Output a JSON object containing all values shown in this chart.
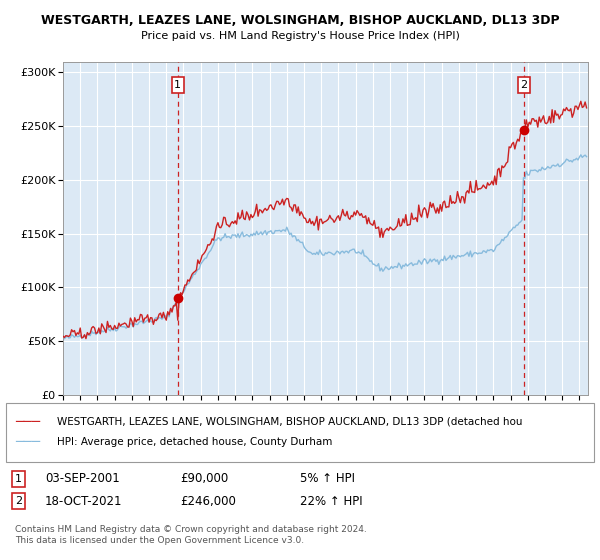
{
  "title": "WESTGARTH, LEAZES LANE, WOLSINGHAM, BISHOP AUCKLAND, DL13 3DP",
  "subtitle": "Price paid vs. HM Land Registry's House Price Index (HPI)",
  "background_color": "#dce9f5",
  "line_color_hpi": "#88bbdd",
  "line_color_prop": "#cc2222",
  "marker_color": "#cc0000",
  "vline_color": "#cc2222",
  "sale1_date": 2001.67,
  "sale1_price": 90000,
  "sale2_date": 2021.79,
  "sale2_price": 246000,
  "legend_label_prop": "WESTGARTH, LEAZES LANE, WOLSINGHAM, BISHOP AUCKLAND, DL13 3DP (detached hou",
  "legend_label_hpi": "HPI: Average price, detached house, County Durham",
  "footer": "Contains HM Land Registry data © Crown copyright and database right 2024.\nThis data is licensed under the Open Government Licence v3.0.",
  "ylim": [
    0,
    310000
  ],
  "yticks": [
    0,
    50000,
    100000,
    150000,
    200000,
    250000,
    300000
  ],
  "ytick_labels": [
    "£0",
    "£50K",
    "£100K",
    "£150K",
    "£200K",
    "£250K",
    "£300K"
  ],
  "xstart": 1995,
  "xend": 2025.5
}
